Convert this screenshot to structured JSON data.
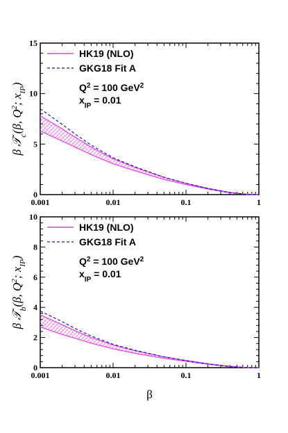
{
  "chart_data": [
    {
      "type": "area",
      "panel": "top",
      "xscale": "log",
      "xlim": [
        0.001,
        1
      ],
      "ylim": [
        0,
        15
      ],
      "yticks": [
        "0",
        "5",
        "10",
        "15"
      ],
      "xticks": [
        "0.001",
        "0.01",
        "0.1",
        "1"
      ],
      "ylabel": "β 𝒯c(β, Q²; xIP)",
      "xlabel": "",
      "legend": [
        "HK19 (NLO)",
        "GKG18 Fit A"
      ],
      "legend_placement": "top-left",
      "annotations": [
        "Q² = 100 GeV²",
        "xIP = 0.01"
      ],
      "series": [
        {
          "name": "HK19 (NLO)",
          "kind": "band",
          "color": "#e040e0",
          "x": [
            0.001,
            0.002,
            0.003,
            0.005,
            0.01,
            0.02,
            0.05,
            0.1,
            0.2,
            0.4,
            0.7,
            1.0
          ],
          "lower": [
            6.3,
            5.3,
            4.7,
            3.95,
            3.05,
            2.35,
            1.5,
            1.0,
            0.55,
            0.18,
            0.02,
            0.0
          ],
          "upper": [
            7.8,
            6.5,
            5.7,
            4.7,
            3.55,
            2.7,
            1.7,
            1.12,
            0.62,
            0.22,
            0.03,
            0.0
          ]
        },
        {
          "name": "GKG18 Fit A",
          "kind": "line",
          "color": "#1a1aa0",
          "x": [
            0.001,
            0.002,
            0.003,
            0.005,
            0.01,
            0.02,
            0.05,
            0.1,
            0.2,
            0.4,
            0.7,
            1.0
          ],
          "values": [
            8.5,
            6.95,
            6.0,
            4.9,
            3.65,
            2.75,
            1.72,
            1.12,
            0.6,
            0.2,
            0.02,
            0.0
          ]
        }
      ]
    },
    {
      "type": "area",
      "panel": "bottom",
      "xscale": "log",
      "xlim": [
        0.001,
        1
      ],
      "ylim": [
        0,
        10
      ],
      "yticks": [
        "0",
        "2",
        "4",
        "6",
        "8",
        "10"
      ],
      "xticks": [
        "0.001",
        "0.01",
        "0.1",
        "1"
      ],
      "ylabel": "β 𝒯b(β, Q²; xIP)",
      "xlabel": "β",
      "legend": [
        "HK19 (NLO)",
        "GKG18 Fit A"
      ],
      "legend_placement": "top-left",
      "annotations": [
        "Q² = 100 GeV²",
        "xIP = 0.01"
      ],
      "series": [
        {
          "name": "HK19 (NLO)",
          "kind": "band",
          "color": "#e040e0",
          "x": [
            0.001,
            0.002,
            0.003,
            0.005,
            0.01,
            0.02,
            0.05,
            0.1,
            0.2,
            0.4,
            0.7,
            1.0
          ],
          "lower": [
            2.7,
            2.2,
            1.95,
            1.62,
            1.25,
            0.95,
            0.62,
            0.42,
            0.23,
            0.07,
            0.01,
            0.0
          ],
          "upper": [
            3.5,
            2.85,
            2.45,
            2.0,
            1.5,
            1.12,
            0.72,
            0.48,
            0.26,
            0.09,
            0.01,
            0.0
          ]
        },
        {
          "name": "GKG18 Fit A",
          "kind": "line",
          "color": "#1a1aa0",
          "x": [
            0.001,
            0.002,
            0.003,
            0.005,
            0.01,
            0.02,
            0.05,
            0.1,
            0.2,
            0.4,
            0.7,
            1.0
          ],
          "values": [
            3.75,
            3.05,
            2.6,
            2.1,
            1.55,
            1.15,
            0.72,
            0.47,
            0.24,
            0.07,
            0.01,
            0.0
          ]
        }
      ]
    }
  ]
}
